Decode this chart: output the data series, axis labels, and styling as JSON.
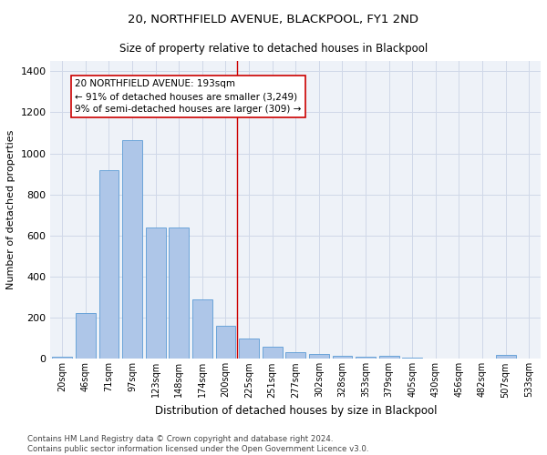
{
  "title": "20, NORTHFIELD AVENUE, BLACKPOOL, FY1 2ND",
  "subtitle": "Size of property relative to detached houses in Blackpool",
  "xlabel": "Distribution of detached houses by size in Blackpool",
  "ylabel": "Number of detached properties",
  "footnote": "Contains HM Land Registry data © Crown copyright and database right 2024.\nContains public sector information licensed under the Open Government Licence v3.0.",
  "categories": [
    "20sqm",
    "46sqm",
    "71sqm",
    "97sqm",
    "123sqm",
    "148sqm",
    "174sqm",
    "200sqm",
    "225sqm",
    "251sqm",
    "277sqm",
    "302sqm",
    "328sqm",
    "353sqm",
    "379sqm",
    "405sqm",
    "430sqm",
    "456sqm",
    "482sqm",
    "507sqm",
    "533sqm"
  ],
  "values": [
    10,
    225,
    920,
    1065,
    640,
    640,
    290,
    160,
    100,
    60,
    35,
    25,
    15,
    10,
    15,
    5,
    2,
    1,
    1,
    18,
    1
  ],
  "bar_color": "#aec6e8",
  "bar_edge_color": "#5b9bd5",
  "grid_color": "#d0d8e8",
  "bg_color": "#eef2f8",
  "red_line_x": 7.5,
  "annotation_text": "20 NORTHFIELD AVENUE: 193sqm\n← 91% of detached houses are smaller (3,249)\n9% of semi-detached houses are larger (309) →",
  "ylim": [
    0,
    1450
  ],
  "yticks": [
    0,
    200,
    400,
    600,
    800,
    1000,
    1200,
    1400
  ]
}
